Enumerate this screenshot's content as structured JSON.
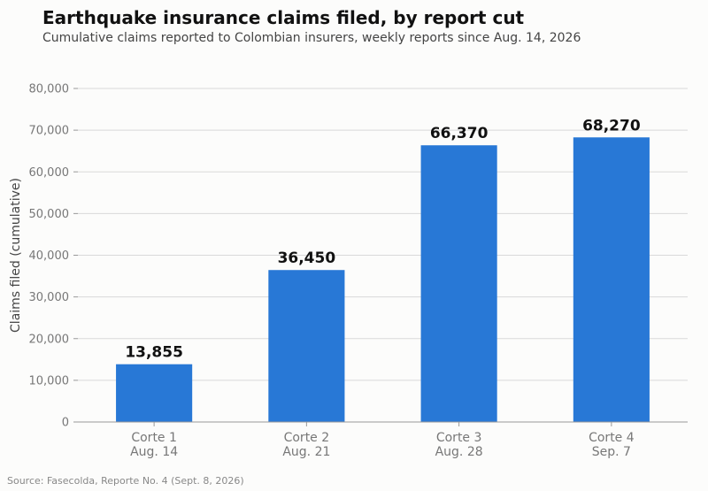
{
  "header": {
    "title": "Earthquake insurance claims filed, by report cut",
    "subtitle": "Cumulative claims reported to Colombian insurers, weekly reports since Aug. 14, 2026"
  },
  "footer": {
    "source": "Source: Fasecolda, Reporte No. 4 (Sept. 8, 2026)"
  },
  "colors": {
    "bar": "#2878d6",
    "grid": "#d9d9d9",
    "axis": "#999999"
  },
  "chart_data": {
    "type": "bar",
    "title": "Earthquake insurance claims filed, by report cut",
    "subtitle": "Cumulative claims reported to Colombian insurers, weekly reports since Aug. 14, 2026",
    "xlabel": "",
    "ylabel": "Claims filed (cumulative)",
    "categories": [
      [
        "Corte 1",
        "Aug. 14"
      ],
      [
        "Corte 2",
        "Aug. 21"
      ],
      [
        "Corte 3",
        "Aug. 28"
      ],
      [
        "Corte 4",
        "Sep. 7"
      ]
    ],
    "values": [
      13855,
      36450,
      66370,
      68270
    ],
    "value_labels": [
      "13,855",
      "36,450",
      "66,370",
      "68,270"
    ],
    "ylim": [
      0,
      80000
    ],
    "yticks": [
      0,
      10000,
      20000,
      30000,
      40000,
      50000,
      60000,
      70000,
      80000
    ],
    "ytick_labels": [
      "0",
      "10,000",
      "20,000",
      "30,000",
      "40,000",
      "50,000",
      "60,000",
      "70,000",
      "80,000"
    ],
    "grid": true,
    "legend": "none"
  }
}
